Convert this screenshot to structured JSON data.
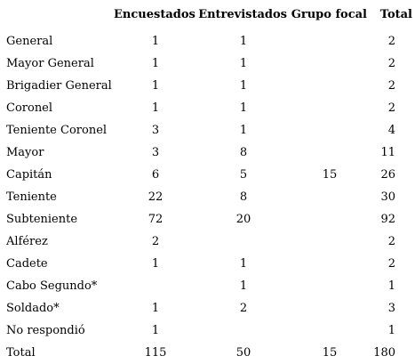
{
  "table": {
    "columns": [
      "",
      "Encuestados",
      "Entrevistados",
      "Grupo focal",
      "Total"
    ],
    "rows": [
      {
        "label": "General",
        "encuestados": "1",
        "entrevistados": "1",
        "grupo_focal": "",
        "total": "2"
      },
      {
        "label": "Mayor General",
        "encuestados": "1",
        "entrevistados": "1",
        "grupo_focal": "",
        "total": "2"
      },
      {
        "label": "Brigadier General",
        "encuestados": "1",
        "entrevistados": "1",
        "grupo_focal": "",
        "total": "2"
      },
      {
        "label": "Coronel",
        "encuestados": "1",
        "entrevistados": "1",
        "grupo_focal": "",
        "total": "2"
      },
      {
        "label": "Teniente Coronel",
        "encuestados": "3",
        "entrevistados": "1",
        "grupo_focal": "",
        "total": "4"
      },
      {
        "label": "Mayor",
        "encuestados": "3",
        "entrevistados": "8",
        "grupo_focal": "",
        "total": "11"
      },
      {
        "label": "Capitán",
        "encuestados": "6",
        "entrevistados": "5",
        "grupo_focal": "15",
        "total": "26"
      },
      {
        "label": "Teniente",
        "encuestados": "22",
        "entrevistados": "8",
        "grupo_focal": "",
        "total": "30"
      },
      {
        "label": "Subteniente",
        "encuestados": "72",
        "entrevistados": "20",
        "grupo_focal": "",
        "total": "92"
      },
      {
        "label": "Alférez",
        "encuestados": "2",
        "entrevistados": "",
        "grupo_focal": "",
        "total": "2"
      },
      {
        "label": "Cadete",
        "encuestados": "1",
        "entrevistados": "1",
        "grupo_focal": "",
        "total": "2"
      },
      {
        "label": "Cabo Segundo*",
        "encuestados": "",
        "entrevistados": "1",
        "grupo_focal": "",
        "total": "1"
      },
      {
        "label": "Soldado*",
        "encuestados": "1",
        "entrevistados": "2",
        "grupo_focal": "",
        "total": "3"
      },
      {
        "label": "No respondió",
        "encuestados": "1",
        "entrevistados": "",
        "grupo_focal": "",
        "total": "1"
      },
      {
        "label": "Total",
        "encuestados": "115",
        "entrevistados": "50",
        "grupo_focal": "15",
        "total": "180"
      }
    ]
  }
}
